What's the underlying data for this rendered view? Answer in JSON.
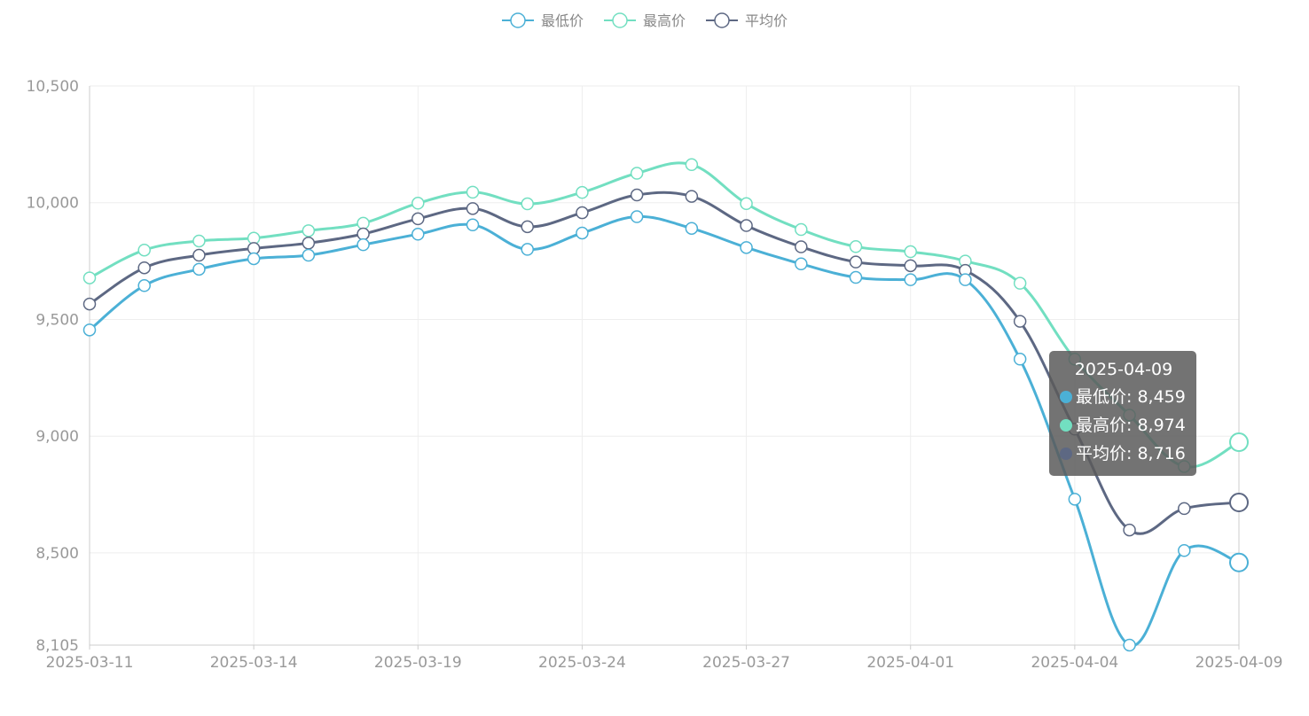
{
  "chart_data": {
    "type": "line",
    "title": "",
    "xlabel": "",
    "ylabel": "",
    "ylim": [
      8105,
      10500
    ],
    "y_ticks": [
      "8,105",
      "8,500",
      "9,000",
      "9,500",
      "10,000",
      "10,500"
    ],
    "y_tick_values": [
      8105,
      8500,
      9000,
      9500,
      10000,
      10500
    ],
    "x_tick_labels": [
      "2025-03-11",
      "2025-03-14",
      "2025-03-19",
      "2025-03-24",
      "2025-03-27",
      "2025-04-01",
      "2025-04-04",
      "2025-04-09"
    ],
    "x_tick_indices": [
      0,
      3,
      6,
      9,
      12,
      15,
      18,
      21
    ],
    "categories": [
      "2025-03-11",
      "2025-03-12",
      "2025-03-13",
      "2025-03-14",
      "2025-03-17",
      "2025-03-18",
      "2025-03-19",
      "2025-03-20",
      "2025-03-21",
      "2025-03-24",
      "2025-03-25",
      "2025-03-26",
      "2025-03-27",
      "2025-03-28",
      "2025-03-31",
      "2025-04-01",
      "2025-04-02",
      "2025-04-03",
      "2025-04-04",
      "2025-04-07",
      "2025-04-08",
      "2025-04-09"
    ],
    "grid": true,
    "legend_position": "top-center",
    "series": [
      {
        "name": "最低价",
        "color": "#4bb0d6",
        "values": [
          9455,
          9645,
          9715,
          9760,
          9775,
          9820,
          9865,
          9905,
          9800,
          9870,
          9940,
          9890,
          9808,
          9738,
          9680,
          9670,
          9670,
          9330,
          8730,
          8105,
          8510,
          8459
        ]
      },
      {
        "name": "最高价",
        "color": "#72dfc1",
        "values": [
          9678,
          9797,
          9836,
          9848,
          9880,
          9912,
          9998,
          10045,
          9995,
          10044,
          10126,
          10163,
          9996,
          9885,
          9812,
          9790,
          9750,
          9655,
          9330,
          9090,
          8870,
          8974
        ]
      },
      {
        "name": "平均价",
        "color": "#5d6883",
        "values": [
          9566,
          9721,
          9775,
          9804,
          9827,
          9866,
          9931,
          9975,
          9897,
          9957,
          10033,
          10027,
          9902,
          9811,
          9746,
          9730,
          9710,
          9492,
          9030,
          8598,
          8690,
          8716
        ]
      }
    ],
    "tooltip": {
      "date": "2025-04-09",
      "rows": [
        {
          "name": "最低价",
          "value": "8,459",
          "color": "#4bb0d6"
        },
        {
          "name": "最高价",
          "value": "8,974",
          "color": "#72dfc1"
        },
        {
          "name": "平均价",
          "value": "8,716",
          "color": "#5d6883"
        }
      ]
    }
  }
}
